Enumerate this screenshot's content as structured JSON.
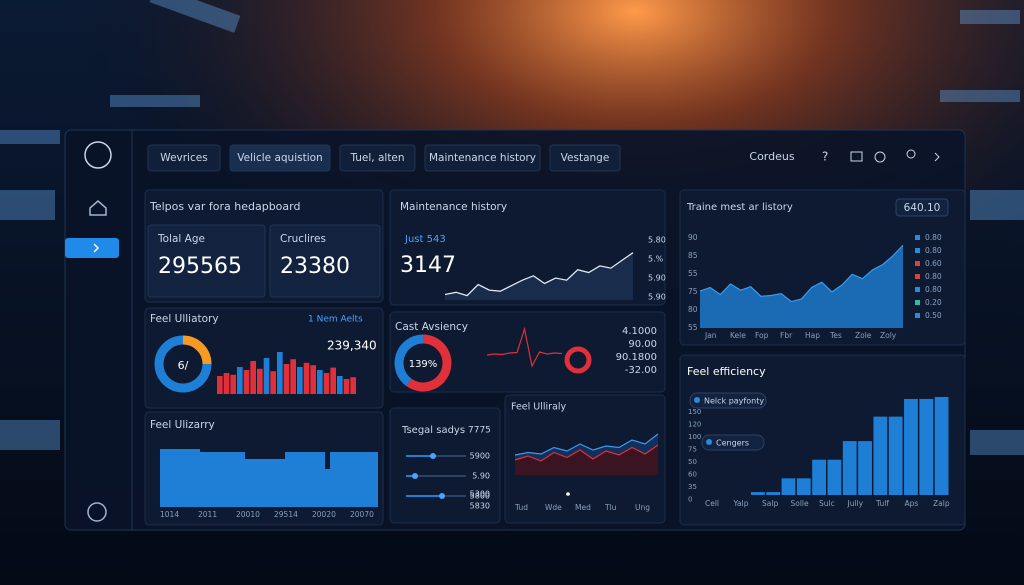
{
  "nav": {
    "tabs": [
      "Wevrices",
      "Velicle aquistion",
      "Tuel, alten",
      "Maintenance history",
      "Vestange"
    ],
    "account": "Cordeus",
    "help": "?"
  },
  "overview": {
    "title": "Telpos var fora hedapboard",
    "cards": [
      {
        "label": "Tolal Age",
        "value": "295565"
      },
      {
        "label": "Cruclires",
        "value": "23380"
      }
    ]
  },
  "maintenance": {
    "title": "Maintenance history",
    "label": "Just 543",
    "value": "3147",
    "axis_labels": [
      "5.80",
      "5.%",
      "5.90",
      "5.90"
    ],
    "line": [
      10,
      14,
      8,
      28,
      18,
      16,
      26,
      36,
      44,
      30,
      40,
      36,
      55,
      50,
      62,
      58,
      72,
      86
    ]
  },
  "history": {
    "title": "Traine mest ar listory",
    "badge": "640.10",
    "y_labels": [
      "90",
      "85",
      "55",
      "75",
      "80",
      "55"
    ],
    "x_labels": [
      "Jan",
      "Kele",
      "Fop",
      "Fbr",
      "Hap",
      "Tes",
      "Zole",
      "Zoly"
    ],
    "area": [
      42,
      46,
      38,
      50,
      43,
      47,
      36,
      37,
      39,
      30,
      33,
      46,
      52,
      41,
      49,
      61,
      56,
      66,
      72,
      82,
      94
    ],
    "legend": [
      {
        "label": "0.80",
        "color": "#2a8ae0"
      },
      {
        "label": "0.80",
        "color": "#2a8ae0"
      },
      {
        "label": "0.60",
        "color": "#e0403a"
      },
      {
        "label": "0.80",
        "color": "#e0403a"
      },
      {
        "label": "0.80",
        "color": "#2a8ae0"
      },
      {
        "label": "0.20",
        "color": "#2ac0a0"
      },
      {
        "label": "0.50",
        "color": "#2a8ae0"
      }
    ]
  },
  "utility": {
    "title": "Feel Ulliatory",
    "link": "1 Nem Aelts",
    "center": "6/",
    "total": "239,340",
    "donut": [
      {
        "value": 25,
        "color": "#f59a23"
      },
      {
        "value": 75,
        "color": "#1f7fd6"
      }
    ],
    "bars": [
      30,
      35,
      32,
      45,
      40,
      55,
      42,
      60,
      38,
      70,
      50,
      58,
      45,
      52,
      48,
      40,
      35,
      44,
      30,
      25,
      28
    ],
    "bar_colors": [
      "#e0303a",
      "#e0303a",
      "#e0303a",
      "#1f7fd6",
      "#e0303a",
      "#e0303a",
      "#e0303a",
      "#1f7fd6",
      "#e0303a",
      "#1f7fd6",
      "#e0303a",
      "#e0303a",
      "#1f7fd6",
      "#e0303a",
      "#e0303a",
      "#1f7fd6",
      "#e0303a",
      "#e0303a",
      "#1f7fd6",
      "#e0303a",
      "#e0303a"
    ]
  },
  "cost": {
    "title": "Cast Avsiency",
    "donut_label": "139%",
    "donut": [
      {
        "value": 60,
        "color": "#e0303a"
      },
      {
        "value": 40,
        "color": "#1f7fd6"
      }
    ],
    "line": [
      40,
      42,
      41,
      44,
      45,
      92,
      18,
      46,
      42,
      44,
      43
    ],
    "values": [
      "4.1000",
      "90.00",
      "90.1800",
      "-32.00"
    ]
  },
  "efficiency": {
    "title": "Feel efficiency",
    "chips": [
      "Nelck payfonty",
      "Cengers"
    ],
    "y_labels": [
      "150",
      "120",
      "100",
      "75",
      "50",
      "60",
      "35",
      "0"
    ],
    "x_labels": [
      "Cell",
      "Yalp",
      "Salp",
      "Solle",
      "Sulc",
      "Jully",
      "Tulf",
      "Aps",
      "Zalp"
    ],
    "bars": [
      0,
      0,
      0,
      3,
      3,
      17,
      17,
      36,
      36,
      55,
      55,
      80,
      80,
      98,
      98,
      100
    ]
  },
  "utilization": {
    "title": "Feel Ulizarry",
    "x_labels": [
      "1014",
      "2011",
      "20010",
      "29514",
      "20020",
      "20070"
    ],
    "blocks": [
      58,
      55,
      48,
      55,
      38,
      55
    ]
  },
  "sliders": {
    "title": "Tsegal sadys",
    "value": "7775",
    "items": [
      {
        "label": "5900",
        "position": 45
      },
      {
        "label": "5.90",
        "position": 15
      },
      {
        "label": "5800",
        "position": 60
      }
    ],
    "extra_labels": [
      "5300",
      "5830"
    ]
  },
  "trend": {
    "title": "Feel Ulliraly",
    "red": [
      30,
      38,
      28,
      45,
      35,
      50,
      32,
      48,
      40,
      55,
      42,
      60
    ],
    "blue": [
      40,
      45,
      42,
      55,
      48,
      62,
      50,
      58,
      55,
      70,
      62,
      82
    ],
    "x_labels": [
      "Tud",
      "Wde",
      "Med",
      "Tlu",
      "Ung"
    ]
  }
}
